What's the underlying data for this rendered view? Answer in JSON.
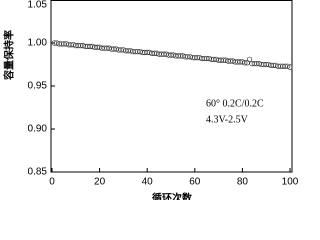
{
  "chart_data": {
    "type": "scatter",
    "ylabel": "容量保持率",
    "xlabel": "循环次数",
    "annotations": [
      "60° 0.2C/0.2C",
      "4.3V-2.5V"
    ],
    "x": [
      1,
      2,
      3,
      4,
      5,
      6,
      7,
      8,
      9,
      10,
      11,
      12,
      13,
      14,
      15,
      16,
      17,
      18,
      19,
      20,
      21,
      22,
      23,
      24,
      25,
      26,
      27,
      28,
      29,
      30,
      31,
      32,
      33,
      34,
      35,
      36,
      37,
      38,
      39,
      40,
      41,
      42,
      43,
      44,
      45,
      46,
      47,
      48,
      49,
      50,
      51,
      52,
      53,
      54,
      55,
      56,
      57,
      58,
      59,
      60,
      61,
      62,
      63,
      64,
      65,
      66,
      67,
      68,
      69,
      70,
      71,
      72,
      73,
      74,
      75,
      76,
      77,
      78,
      79,
      80,
      81,
      82,
      83,
      84,
      85,
      86,
      87,
      88,
      89,
      90,
      91,
      92,
      93,
      94,
      95,
      96,
      97,
      98,
      99,
      100
    ],
    "values": [
      1.0,
      1.0,
      0.999,
      0.999,
      0.999,
      0.999,
      0.998,
      0.998,
      0.998,
      0.997,
      0.997,
      0.997,
      0.997,
      0.996,
      0.996,
      0.996,
      0.996,
      0.995,
      0.995,
      0.995,
      0.994,
      0.994,
      0.994,
      0.994,
      0.993,
      0.993,
      0.993,
      0.992,
      0.992,
      0.992,
      0.991,
      0.991,
      0.991,
      0.99,
      0.99,
      0.99,
      0.99,
      0.989,
      0.989,
      0.989,
      0.989,
      0.988,
      0.988,
      0.988,
      0.987,
      0.987,
      0.987,
      0.987,
      0.986,
      0.986,
      0.986,
      0.985,
      0.985,
      0.985,
      0.985,
      0.984,
      0.984,
      0.984,
      0.983,
      0.983,
      0.983,
      0.983,
      0.982,
      0.982,
      0.982,
      0.982,
      0.981,
      0.981,
      0.981,
      0.98,
      0.98,
      0.98,
      0.98,
      0.979,
      0.979,
      0.979,
      0.978,
      0.978,
      0.978,
      0.978,
      0.977,
      0.977,
      0.981,
      0.976,
      0.976,
      0.976,
      0.976,
      0.975,
      0.975,
      0.975,
      0.975,
      0.974,
      0.974,
      0.974,
      0.973,
      0.973,
      0.973,
      0.973,
      0.973,
      0.972
    ],
    "color": "#333333",
    "xlim": [
      0,
      100
    ],
    "xticks": [
      0,
      20,
      40,
      60,
      80,
      100
    ],
    "ylim": [
      0.85,
      1.05
    ],
    "yticks": [
      {
        "value": 0.85,
        "label": "0.85"
      },
      {
        "value": 0.9,
        "label": "0.90"
      },
      {
        "value": 0.95,
        "label": "0.95"
      },
      {
        "value": 1.0,
        "label": "1.00"
      },
      {
        "value": 1.05,
        "label": "1.05"
      }
    ]
  }
}
